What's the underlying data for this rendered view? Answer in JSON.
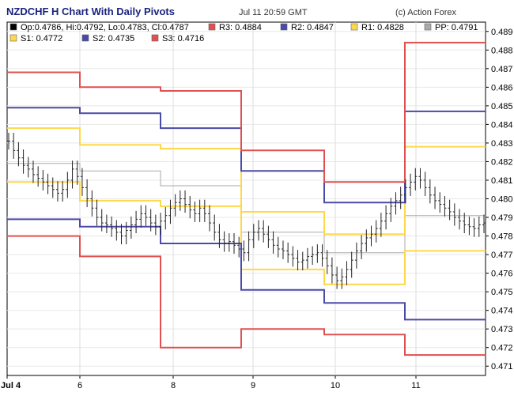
{
  "header": {
    "title": "NZDCHF H Chart With Daily Pivots",
    "timestamp": "Jul 11 20:59 GMT",
    "copyright": "(c) Action Forex"
  },
  "legend": [
    {
      "label": "Op:0.4786, Hi:0.4792, Lo:0.4783, Cl:0.4787",
      "color": "#000000"
    },
    {
      "label": "R3: 0.4884",
      "color": "#e05050"
    },
    {
      "label": "R2: 0.4847",
      "color": "#4a4aa8"
    },
    {
      "label": "R1: 0.4828",
      "color": "#ffd84a"
    },
    {
      "label": "PP: 0.4791",
      "color": "#aaaaaa"
    },
    {
      "label": "S1: 0.4772",
      "color": "#ffd84a"
    },
    {
      "label": "S2: 0.4735",
      "color": "#4a4aa8"
    },
    {
      "label": "S3: 0.4716",
      "color": "#e05050"
    }
  ],
  "chart_data": {
    "type": "line",
    "ylim": [
      0.4705,
      0.4895
    ],
    "yticks": [
      "0.471",
      "0.472",
      "0.473",
      "0.474",
      "0.475",
      "0.476",
      "0.477",
      "0.478",
      "0.479",
      "0.480",
      "0.481",
      "0.482",
      "0.483",
      "0.484",
      "0.485",
      "0.486",
      "0.487",
      "0.488",
      "0.489"
    ],
    "xticks": [
      {
        "label": "Jul 4",
        "bold": true
      },
      {
        "label": "6",
        "bold": false
      },
      {
        "label": "8",
        "bold": false
      },
      {
        "label": "9",
        "bold": false
      },
      {
        "label": "10",
        "bold": false
      },
      {
        "label": "11",
        "bold": false
      }
    ],
    "pivot_segments": [
      {
        "day": "Jul 4",
        "R3": 0.4868,
        "R2": 0.4849,
        "R1": 0.4838,
        "PP": 0.4819,
        "S1": 0.4809,
        "S2": 0.4789,
        "S3": 0.478
      },
      {
        "day": "6",
        "R3": 0.486,
        "R2": 0.4846,
        "R1": 0.4829,
        "PP": 0.4815,
        "S1": 0.4799,
        "S2": 0.4785,
        "S3": 0.4769
      },
      {
        "day": "8",
        "R3": 0.4858,
        "R2": 0.4838,
        "R1": 0.4827,
        "PP": 0.4807,
        "S1": 0.4796,
        "S2": 0.4776,
        "S3": 0.472
      },
      {
        "day": "9",
        "R3": 0.4826,
        "R2": 0.4815,
        "R1": 0.4793,
        "PP": 0.4782,
        "S1": 0.4762,
        "S2": 0.4751,
        "S3": 0.473
      },
      {
        "day": "10",
        "R3": 0.4809,
        "R2": 0.4798,
        "R1": 0.4781,
        "PP": 0.4771,
        "S1": 0.4754,
        "S2": 0.4744,
        "S3": 0.4727
      },
      {
        "day": "11",
        "R3": 0.4884,
        "R2": 0.4847,
        "R1": 0.4828,
        "PP": 0.4791,
        "S1": 0.4772,
        "S2": 0.4735,
        "S3": 0.4716
      }
    ],
    "close_path": [
      0.4831,
      0.4826,
      0.4822,
      0.4818,
      0.4816,
      0.4813,
      0.4811,
      0.4809,
      0.4807,
      0.4805,
      0.4803,
      0.4805,
      0.481,
      0.4816,
      0.4812,
      0.4806,
      0.48,
      0.4795,
      0.479,
      0.4787,
      0.4786,
      0.4784,
      0.4782,
      0.478,
      0.4783,
      0.4786,
      0.4789,
      0.4792,
      0.479,
      0.4787,
      0.4785,
      0.4788,
      0.4791,
      0.4795,
      0.4798,
      0.48,
      0.4797,
      0.4794,
      0.4792,
      0.4795,
      0.4792,
      0.4787,
      0.4782,
      0.4778,
      0.4776,
      0.4777,
      0.4775,
      0.4773,
      0.4771,
      0.4778,
      0.4782,
      0.4784,
      0.4781,
      0.4778,
      0.4775,
      0.4773,
      0.4772,
      0.477,
      0.4768,
      0.4766,
      0.4767,
      0.4769,
      0.477,
      0.4771,
      0.4768,
      0.4764,
      0.4759,
      0.4756,
      0.4758,
      0.4762,
      0.4767,
      0.4772,
      0.4776,
      0.4779,
      0.4781,
      0.4784,
      0.4788,
      0.4792,
      0.4796,
      0.4799,
      0.4802,
      0.4806,
      0.4809,
      0.4812,
      0.481,
      0.4806,
      0.4802,
      0.4799,
      0.4797,
      0.4795,
      0.4793,
      0.479,
      0.4788,
      0.4786,
      0.4785,
      0.4784,
      0.4786,
      0.4787
    ]
  }
}
